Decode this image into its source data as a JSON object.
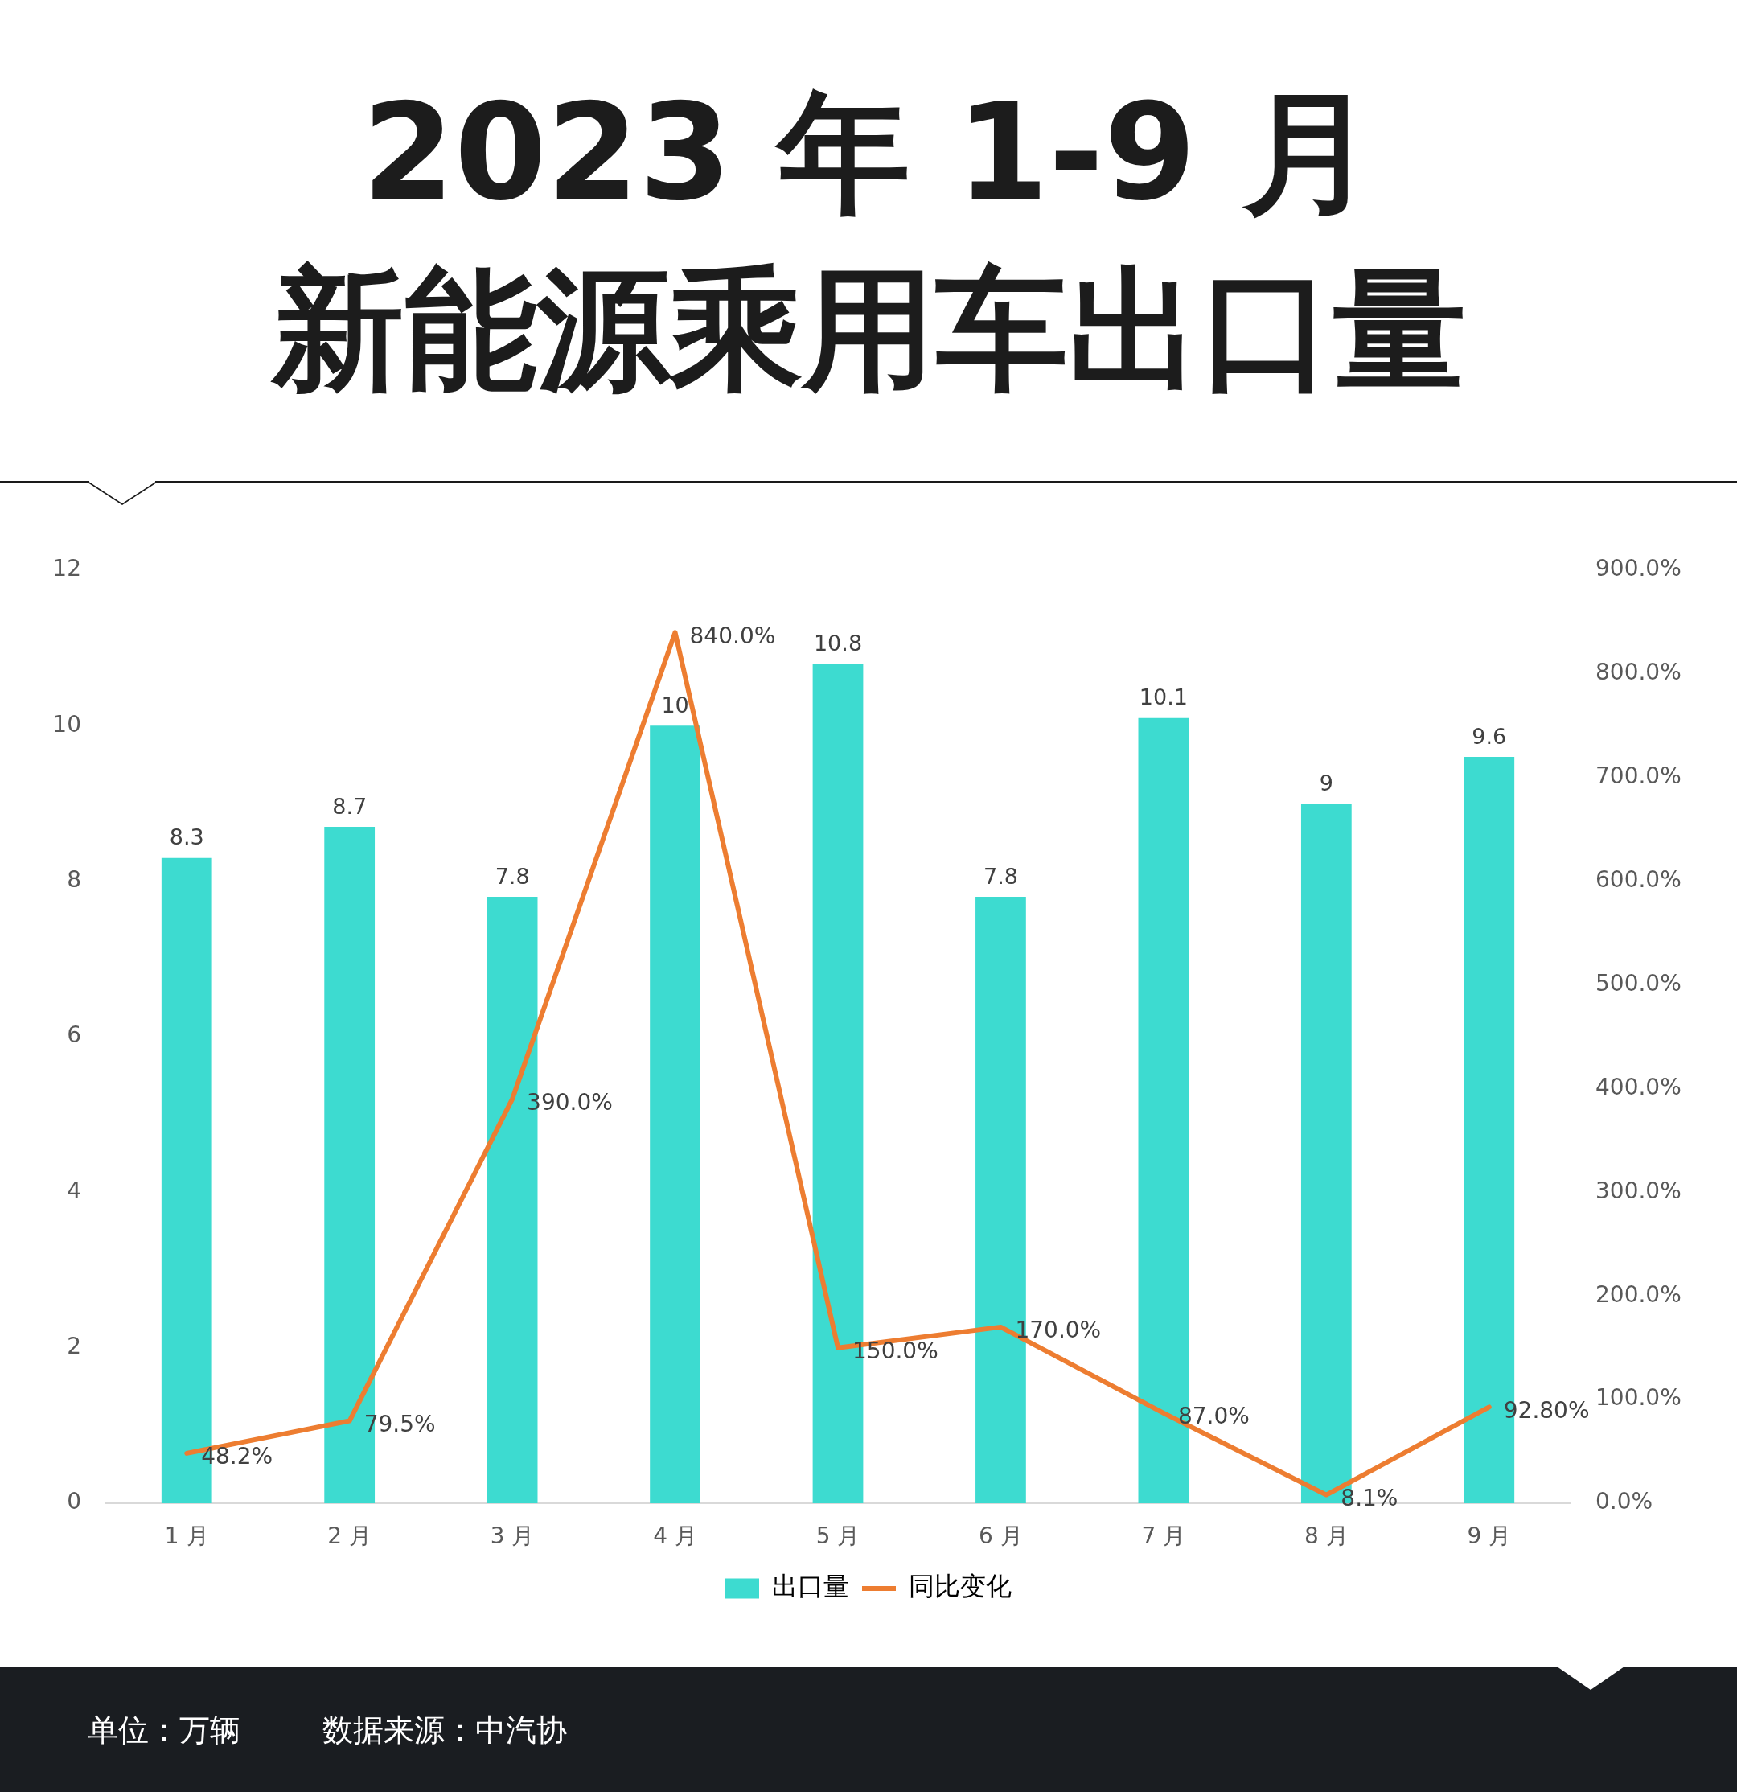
{
  "chart_data": {
    "type": "bar",
    "title": "2023 年 1-9 月",
    "subtitle": "新能源乘用车出口量",
    "categories": [
      "1 月",
      "2 月",
      "3 月",
      "4 月",
      "5 月",
      "6 月",
      "7 月",
      "8 月",
      "9 月"
    ],
    "series": [
      {
        "name": "出口量",
        "color": "#3ddbd0",
        "values": [
          8.3,
          8.7,
          7.8,
          10,
          10.8,
          7.8,
          10.1,
          9,
          9.6
        ],
        "value_labels": [
          "8.3",
          "8.7",
          "7.8",
          "10",
          "10.8",
          "7.8",
          "10.1",
          "9",
          "9.6"
        ]
      },
      {
        "name": "同比变化",
        "type": "line",
        "axis": "y2",
        "color": "#ed7d31",
        "values": [
          48.2,
          79.5,
          390,
          840,
          150,
          170,
          87,
          8.1,
          92.8
        ],
        "value_labels": [
          "48.2%",
          "79.5%",
          "390.0%",
          "840.0%",
          "150.0%",
          "170.0%",
          "87.0%",
          "8.1%",
          "92.80%"
        ]
      }
    ],
    "ylim": [
      0,
      12
    ],
    "yticks": [
      0,
      2,
      4,
      6,
      8,
      10,
      12
    ],
    "y2lim": [
      0,
      900
    ],
    "y2ticks": [
      {
        "value": 0,
        "label": "0.0%"
      },
      {
        "value": 100,
        "label": "100.0%"
      },
      {
        "value": 200,
        "label": "200.0%"
      },
      {
        "value": 300,
        "label": "300.0%"
      },
      {
        "value": 400,
        "label": "400.0%"
      },
      {
        "value": 500,
        "label": "500.0%"
      },
      {
        "value": 600,
        "label": "600.0%"
      },
      {
        "value": 700,
        "label": "700.0%"
      },
      {
        "value": 800,
        "label": "800.0%"
      },
      {
        "value": 900,
        "label": "900.0%"
      }
    ],
    "grid": false,
    "legend": "bottom",
    "marker": "none",
    "line_style": "solid",
    "annotations": [
      "单位：万辆",
      "数据来源：中汽协"
    ]
  }
}
